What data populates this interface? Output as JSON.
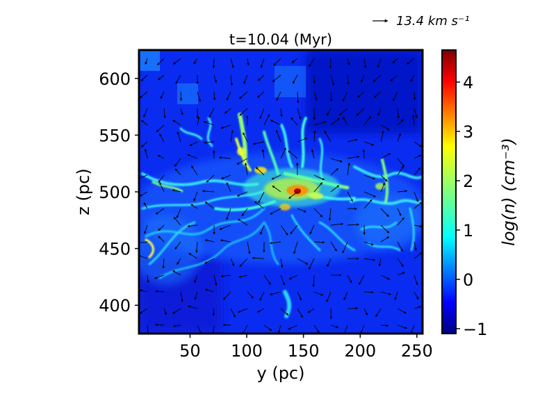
{
  "chart_data": {
    "type": "heatmap",
    "title": "t=10.04 (Myr)",
    "xlabel": "y (pc)",
    "ylabel": "z (pc)",
    "xlim": [
      5,
      255
    ],
    "ylim": [
      375,
      625
    ],
    "xticks": [
      50,
      100,
      150,
      200,
      250
    ],
    "yticks": [
      400,
      450,
      500,
      550,
      600
    ],
    "colorbar": {
      "label": "log(n) (cm⁻³)",
      "range": [
        -1.1,
        4.65
      ],
      "ticks": [
        -1,
        0,
        1,
        2,
        3,
        4
      ],
      "tick_labels": [
        "−1",
        "0",
        "1",
        "2",
        "3",
        "4"
      ],
      "colormap": "jet"
    },
    "quiver_key": {
      "label": "13.4 km s⁻¹",
      "magnitude": 13.4
    },
    "field_description_features": {
      "background_log_n": -0.4,
      "dense_midplane_z": 500,
      "peak_location": [
        145,
        500
      ],
      "peak_log_n": 4.6
    }
  },
  "colors": {
    "frame": "#000000",
    "arrow": "#000000",
    "background": "#ffffff"
  }
}
